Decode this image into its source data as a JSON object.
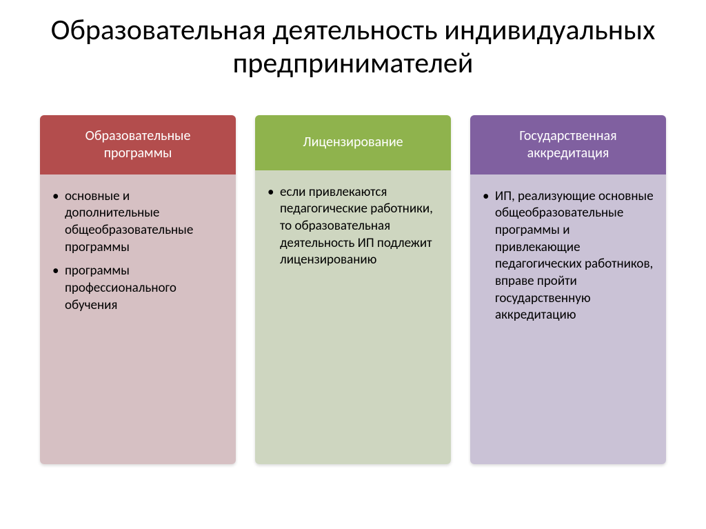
{
  "title": "Образовательная деятельность индивидуальных предпринимателей",
  "columns": [
    {
      "header": "Образовательные программы",
      "header_color": "#b34d4d",
      "body_color": "#d6c0c3",
      "items": [
        "основные и дополнительные общеобразовательные программы",
        "программы профессионального обучения"
      ]
    },
    {
      "header": "Лицензирование",
      "header_color": "#8fb34d",
      "body_color": "#ced6c0",
      "items": [
        "если привлекаются педагогические работники, то образовательная деятельность ИП подлежит лицензированию"
      ]
    },
    {
      "header": "Государственная аккредитация",
      "header_color": "#8060a0",
      "body_color": "#cac2d6",
      "items": [
        "ИП, реализующие основные общеобразовательные программы и привлекающие педагогических работников, вправе пройти государственную аккредитацию"
      ]
    }
  ],
  "style": {
    "title_fontsize": 42,
    "header_fontsize": 20,
    "item_fontsize": 19,
    "title_color": "#000000",
    "item_color": "#000000",
    "header_text_color": "#ffffff",
    "background_color": "#ffffff",
    "column_gap": 28,
    "column_body_min_height": 420
  }
}
